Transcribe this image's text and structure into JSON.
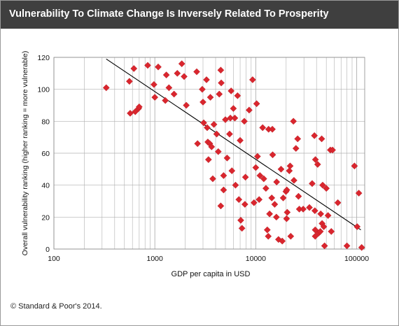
{
  "header": {
    "title": "Vulnerability To Climate Change Is Inversely Related To Prosperity"
  },
  "footer": {
    "copyright": "© Standard & Poor's 2014."
  },
  "colors": {
    "header_bg": "#3f3f3f",
    "marker": "#d9262e",
    "trendline": "#000000",
    "grid": "#b0b0b0"
  },
  "chart_data": {
    "type": "scatter",
    "xlabel": "GDP  per capita  in USD",
    "ylabel": "Overall vulnerability ranking (higher ranking = more vulnerable)",
    "x_scale": "log",
    "xlim": [
      100,
      120000
    ],
    "ylim": [
      0,
      120
    ],
    "x_ticks": [
      {
        "value": 100,
        "label": "100"
      },
      {
        "value": 1000,
        "label": "1000"
      },
      {
        "value": 10000,
        "label": "10000"
      },
      {
        "value": 100000,
        "label": "100000"
      }
    ],
    "y_ticks": [
      0,
      20,
      40,
      60,
      80,
      100,
      120
    ],
    "grid": true,
    "legend": "none",
    "trendline": {
      "x": [
        330,
        110000
      ],
      "y": [
        119,
        12
      ]
    },
    "points": [
      [
        330,
        101
      ],
      [
        560,
        105
      ],
      [
        570,
        85
      ],
      [
        620,
        113
      ],
      [
        640,
        86
      ],
      [
        690,
        88
      ],
      [
        700,
        89
      ],
      [
        850,
        115
      ],
      [
        980,
        103
      ],
      [
        1000,
        95
      ],
      [
        1080,
        114
      ],
      [
        1270,
        93
      ],
      [
        1300,
        109
      ],
      [
        1380,
        101
      ],
      [
        1550,
        97
      ],
      [
        1670,
        110
      ],
      [
        1850,
        116
      ],
      [
        1950,
        108
      ],
      [
        2050,
        90
      ],
      [
        2600,
        111
      ],
      [
        2650,
        66
      ],
      [
        2950,
        100
      ],
      [
        3000,
        92
      ],
      [
        3050,
        79
      ],
      [
        3250,
        106
      ],
      [
        3300,
        76
      ],
      [
        3350,
        67
      ],
      [
        3400,
        56
      ],
      [
        3500,
        66
      ],
      [
        3550,
        95
      ],
      [
        3650,
        64
      ],
      [
        3750,
        44
      ],
      [
        3850,
        78
      ],
      [
        4100,
        72
      ],
      [
        4250,
        61
      ],
      [
        4350,
        97
      ],
      [
        4500,
        112
      ],
      [
        4500,
        27
      ],
      [
        4550,
        104
      ],
      [
        4800,
        46
      ],
      [
        4800,
        37
      ],
      [
        5000,
        81
      ],
      [
        5200,
        57
      ],
      [
        5500,
        72
      ],
      [
        5600,
        82
      ],
      [
        5700,
        99
      ],
      [
        5800,
        49
      ],
      [
        6000,
        88
      ],
      [
        6200,
        82
      ],
      [
        6300,
        40
      ],
      [
        6600,
        96
      ],
      [
        6800,
        31
      ],
      [
        7000,
        68
      ],
      [
        7100,
        18
      ],
      [
        7300,
        13
      ],
      [
        7700,
        80
      ],
      [
        7800,
        28
      ],
      [
        7900,
        45
      ],
      [
        8600,
        87
      ],
      [
        9300,
        106
      ],
      [
        9600,
        29
      ],
      [
        10000,
        51
      ],
      [
        10200,
        91
      ],
      [
        10400,
        58
      ],
      [
        10800,
        31
      ],
      [
        11000,
        46
      ],
      [
        11700,
        76
      ],
      [
        12000,
        44
      ],
      [
        12600,
        38
      ],
      [
        13000,
        12
      ],
      [
        13300,
        8
      ],
      [
        13400,
        75
      ],
      [
        13700,
        22
      ],
      [
        14400,
        32
      ],
      [
        14600,
        75
      ],
      [
        14700,
        59
      ],
      [
        15400,
        28
      ],
      [
        16000,
        20
      ],
      [
        16100,
        42
      ],
      [
        16800,
        6
      ],
      [
        17800,
        50
      ],
      [
        18300,
        5
      ],
      [
        18700,
        32
      ],
      [
        19900,
        36
      ],
      [
        20200,
        19
      ],
      [
        20300,
        37
      ],
      [
        20500,
        23
      ],
      [
        21500,
        49
      ],
      [
        21900,
        52
      ],
      [
        22200,
        8
      ],
      [
        23600,
        80
      ],
      [
        23900,
        43
      ],
      [
        25000,
        63
      ],
      [
        26000,
        69
      ],
      [
        26500,
        33
      ],
      [
        27000,
        25
      ],
      [
        29500,
        25
      ],
      [
        34000,
        26
      ],
      [
        36200,
        41
      ],
      [
        38100,
        71
      ],
      [
        38500,
        24
      ],
      [
        38800,
        8
      ],
      [
        38800,
        12
      ],
      [
        39000,
        56
      ],
      [
        41000,
        53
      ],
      [
        42000,
        10
      ],
      [
        43600,
        11
      ],
      [
        44000,
        22
      ],
      [
        45000,
        69
      ],
      [
        45400,
        16
      ],
      [
        46000,
        40
      ],
      [
        47200,
        14
      ],
      [
        48000,
        2
      ],
      [
        50000,
        38
      ],
      [
        52000,
        21
      ],
      [
        54800,
        62
      ],
      [
        56000,
        11
      ],
      [
        57600,
        62
      ],
      [
        65000,
        29
      ],
      [
        80000,
        2
      ],
      [
        95000,
        52
      ],
      [
        101000,
        14
      ],
      [
        105000,
        35
      ],
      [
        112000,
        1
      ]
    ]
  }
}
